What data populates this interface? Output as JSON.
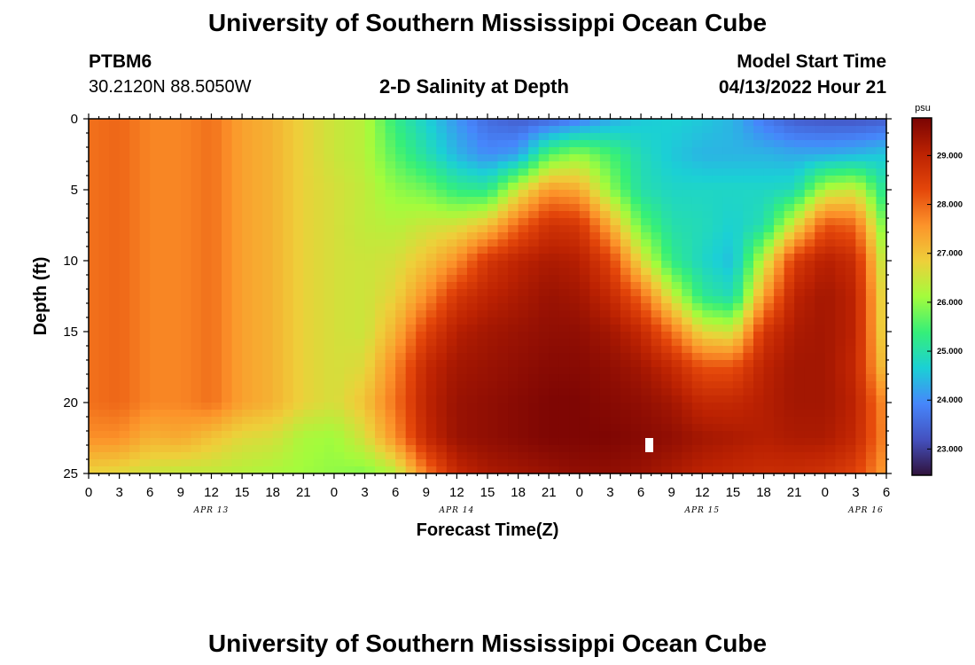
{
  "header": {
    "title": "University of Southern Mississippi Ocean Cube",
    "station_id": "PTBM6",
    "coords": "30.2120N  88.5050W",
    "subtitle": "2-D Salinity at Depth",
    "model_label": "Model Start Time",
    "model_time": "04/13/2022 Hour 21"
  },
  "footer": {
    "title": "University of Southern Mississippi Ocean Cube"
  },
  "chart_data": {
    "type": "heatmap",
    "title": "2-D Salinity at Depth",
    "xlabel": "Forecast Time(Z)",
    "ylabel": "Depth (ft)",
    "colorbar_unit": "psu",
    "ylim": [
      25,
      0
    ],
    "x_range_hours_from_apr13_00z": [
      0,
      78
    ],
    "x_tick_labels": [
      "0",
      "3",
      "6",
      "9",
      "12",
      "15",
      "18",
      "21",
      "0",
      "3",
      "6",
      "9",
      "12",
      "15",
      "18",
      "21",
      "0",
      "3",
      "6",
      "9",
      "12",
      "15",
      "18",
      "21",
      "0",
      "3",
      "6"
    ],
    "y_tick_labels": [
      "0",
      "5",
      "10",
      "15",
      "20",
      "25"
    ],
    "date_labels": [
      "APR 13",
      "APR 14",
      "APR 15",
      "APR 16"
    ],
    "colorbar_ticks": [
      "29.000",
      "28.000",
      "27.000",
      "26.000",
      "25.000",
      "24.000",
      "23.000"
    ],
    "colorbar_range": [
      22.5,
      29.75
    ],
    "colormap": "turbo",
    "x_grid_hours": [
      0,
      3,
      6,
      9,
      12,
      15,
      18,
      21,
      24,
      27,
      30,
      33,
      36,
      39,
      42,
      45,
      48,
      51,
      54,
      57,
      60,
      63,
      66,
      69,
      72,
      75,
      78
    ],
    "y_grid_depths_ft": [
      0,
      2.5,
      5,
      7.5,
      10,
      12.5,
      15,
      17.5,
      20,
      22.5,
      25
    ],
    "salinity_grid_psu": [
      [
        27.9,
        28.0,
        27.7,
        27.7,
        27.9,
        27.4,
        27.2,
        26.8,
        26.5,
        26.3,
        25.3,
        24.7,
        24.1,
        23.6,
        23.4,
        23.5,
        23.8,
        24.3,
        24.6,
        24.7,
        24.6,
        24.4,
        23.8,
        23.4,
        23.3,
        23.3,
        23.4
      ],
      [
        27.9,
        28.0,
        27.7,
        27.7,
        27.9,
        27.4,
        27.2,
        26.8,
        26.5,
        26.3,
        25.6,
        25.0,
        24.4,
        24.0,
        24.2,
        25.6,
        26.0,
        25.5,
        24.9,
        24.6,
        24.4,
        24.4,
        24.4,
        24.3,
        24.3,
        24.4,
        24.6
      ],
      [
        27.9,
        28.0,
        27.7,
        27.7,
        27.9,
        27.4,
        27.2,
        26.8,
        26.6,
        26.4,
        26.0,
        25.8,
        25.3,
        25.2,
        26.5,
        27.5,
        27.3,
        26.0,
        25.0,
        24.8,
        24.8,
        24.8,
        24.8,
        24.9,
        26.3,
        26.5,
        25.0
      ],
      [
        27.9,
        28.0,
        27.7,
        27.7,
        27.9,
        27.4,
        27.2,
        26.8,
        26.6,
        26.4,
        26.3,
        26.5,
        26.6,
        27.0,
        28.0,
        28.7,
        28.6,
        27.3,
        25.7,
        25.0,
        24.9,
        24.7,
        25.0,
        26.6,
        28.2,
        28.0,
        25.6
      ],
      [
        27.9,
        28.0,
        27.7,
        27.7,
        27.9,
        27.4,
        27.2,
        26.8,
        26.6,
        26.5,
        26.6,
        27.0,
        27.6,
        28.6,
        29.0,
        29.2,
        29.1,
        28.4,
        26.7,
        25.3,
        24.8,
        24.5,
        26.4,
        28.5,
        29.1,
        28.8,
        26.1
      ],
      [
        27.9,
        28.0,
        27.7,
        27.7,
        27.9,
        27.4,
        27.2,
        26.8,
        26.6,
        26.5,
        26.8,
        27.6,
        28.6,
        29.0,
        29.2,
        29.4,
        29.3,
        28.9,
        28.0,
        26.5,
        25.2,
        24.9,
        27.4,
        29.0,
        29.3,
        29.0,
        26.4
      ],
      [
        27.9,
        28.0,
        27.7,
        27.7,
        27.9,
        27.4,
        27.2,
        26.8,
        26.6,
        26.5,
        27.2,
        28.4,
        29.1,
        29.3,
        29.4,
        29.5,
        29.5,
        29.3,
        28.9,
        27.9,
        26.7,
        26.5,
        28.6,
        29.2,
        29.3,
        29.0,
        26.5
      ],
      [
        27.9,
        28.0,
        27.7,
        27.7,
        27.9,
        27.4,
        27.2,
        26.8,
        26.6,
        26.7,
        27.7,
        28.9,
        29.3,
        29.4,
        29.5,
        29.6,
        29.6,
        29.5,
        29.3,
        28.9,
        28.2,
        28.2,
        29.0,
        29.3,
        29.3,
        28.9,
        26.8
      ],
      [
        27.9,
        28.0,
        27.7,
        27.7,
        27.9,
        27.4,
        27.2,
        26.8,
        26.6,
        27.0,
        27.9,
        29.0,
        29.4,
        29.5,
        29.6,
        29.7,
        29.7,
        29.6,
        29.5,
        29.3,
        28.9,
        28.9,
        29.1,
        29.3,
        29.3,
        29.0,
        27.5
      ],
      [
        27.6,
        27.6,
        27.2,
        27.3,
        27.0,
        26.7,
        26.6,
        26.2,
        26.1,
        26.6,
        27.6,
        28.9,
        29.4,
        29.5,
        29.6,
        29.7,
        29.7,
        29.7,
        29.6,
        29.5,
        29.3,
        29.2,
        29.1,
        29.2,
        29.2,
        28.9,
        27.6
      ],
      [
        26.8,
        26.7,
        26.5,
        26.4,
        26.4,
        26.3,
        26.2,
        26.1,
        26.0,
        25.9,
        26.3,
        27.8,
        28.9,
        29.2,
        29.3,
        29.4,
        29.5,
        29.5,
        29.4,
        29.2,
        29.0,
        28.9,
        28.8,
        28.8,
        28.7,
        28.4,
        27.4
      ]
    ],
    "annotation": "white marker near 06Z APR 15 at ~23 ft"
  }
}
